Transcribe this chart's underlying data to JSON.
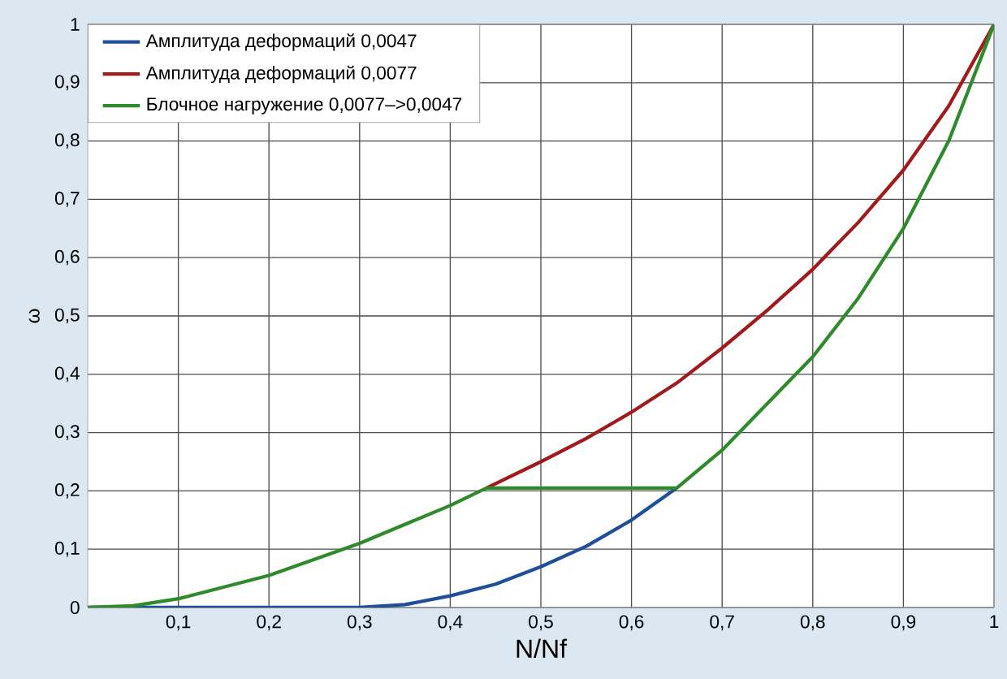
{
  "chart_data": {
    "type": "line",
    "xlabel": "N/Nf",
    "ylabel": "ω",
    "xlim": [
      0,
      1
    ],
    "ylim": [
      0,
      1
    ],
    "xticks": [
      {
        "value": 0.1,
        "label": "0,1"
      },
      {
        "value": 0.2,
        "label": "0,2"
      },
      {
        "value": 0.3,
        "label": "0,3"
      },
      {
        "value": 0.4,
        "label": "0,4"
      },
      {
        "value": 0.5,
        "label": "0,5"
      },
      {
        "value": 0.6,
        "label": "0,6"
      },
      {
        "value": 0.7,
        "label": "0,7"
      },
      {
        "value": 0.8,
        "label": "0,8"
      },
      {
        "value": 0.9,
        "label": "0,9"
      },
      1
    ],
    "yticks": [
      0,
      {
        "value": 0.1,
        "label": "0,1"
      },
      {
        "value": 0.2,
        "label": "0,2"
      },
      {
        "value": 0.3,
        "label": "0,3"
      },
      {
        "value": 0.4,
        "label": "0,4"
      },
      {
        "value": 0.5,
        "label": "0,5"
      },
      {
        "value": 0.6,
        "label": "0,6"
      },
      {
        "value": 0.7,
        "label": "0,7"
      },
      {
        "value": 0.8,
        "label": "0,8"
      },
      {
        "value": 0.9,
        "label": "0,9"
      },
      1
    ],
    "grid": true,
    "legend": "top left",
    "series": [
      {
        "name": "Амплитуда деформаций 0,0047",
        "color": "#1f4e9a",
        "x": [
          0,
          0.3,
          0.35,
          0.4,
          0.45,
          0.5,
          0.55,
          0.6,
          0.65
        ],
        "values": [
          0,
          0,
          0.005,
          0.02,
          0.04,
          0.07,
          0.105,
          0.15,
          0.205
        ]
      },
      {
        "name": "Амплитуда деформаций 0,0077",
        "color": "#a01c1c",
        "x": [
          0.44,
          0.5,
          0.55,
          0.6,
          0.65,
          0.7,
          0.75,
          0.8,
          0.85,
          0.9,
          0.95,
          1
        ],
        "values": [
          0.205,
          0.25,
          0.29,
          0.335,
          0.385,
          0.445,
          0.51,
          0.58,
          0.66,
          0.75,
          0.86,
          1
        ]
      },
      {
        "name": "Блочное нагружение 0,0077–>0,0047",
        "color": "#2e8a2a",
        "x": [
          0,
          0.05,
          0.1,
          0.2,
          0.3,
          0.4,
          0.44,
          0.65,
          0.7,
          0.75,
          0.8,
          0.85,
          0.9,
          0.95,
          1
        ],
        "values": [
          0,
          0.003,
          0.015,
          0.055,
          0.11,
          0.175,
          0.205,
          0.205,
          0.27,
          0.35,
          0.43,
          0.53,
          0.65,
          0.8,
          1
        ]
      }
    ]
  }
}
